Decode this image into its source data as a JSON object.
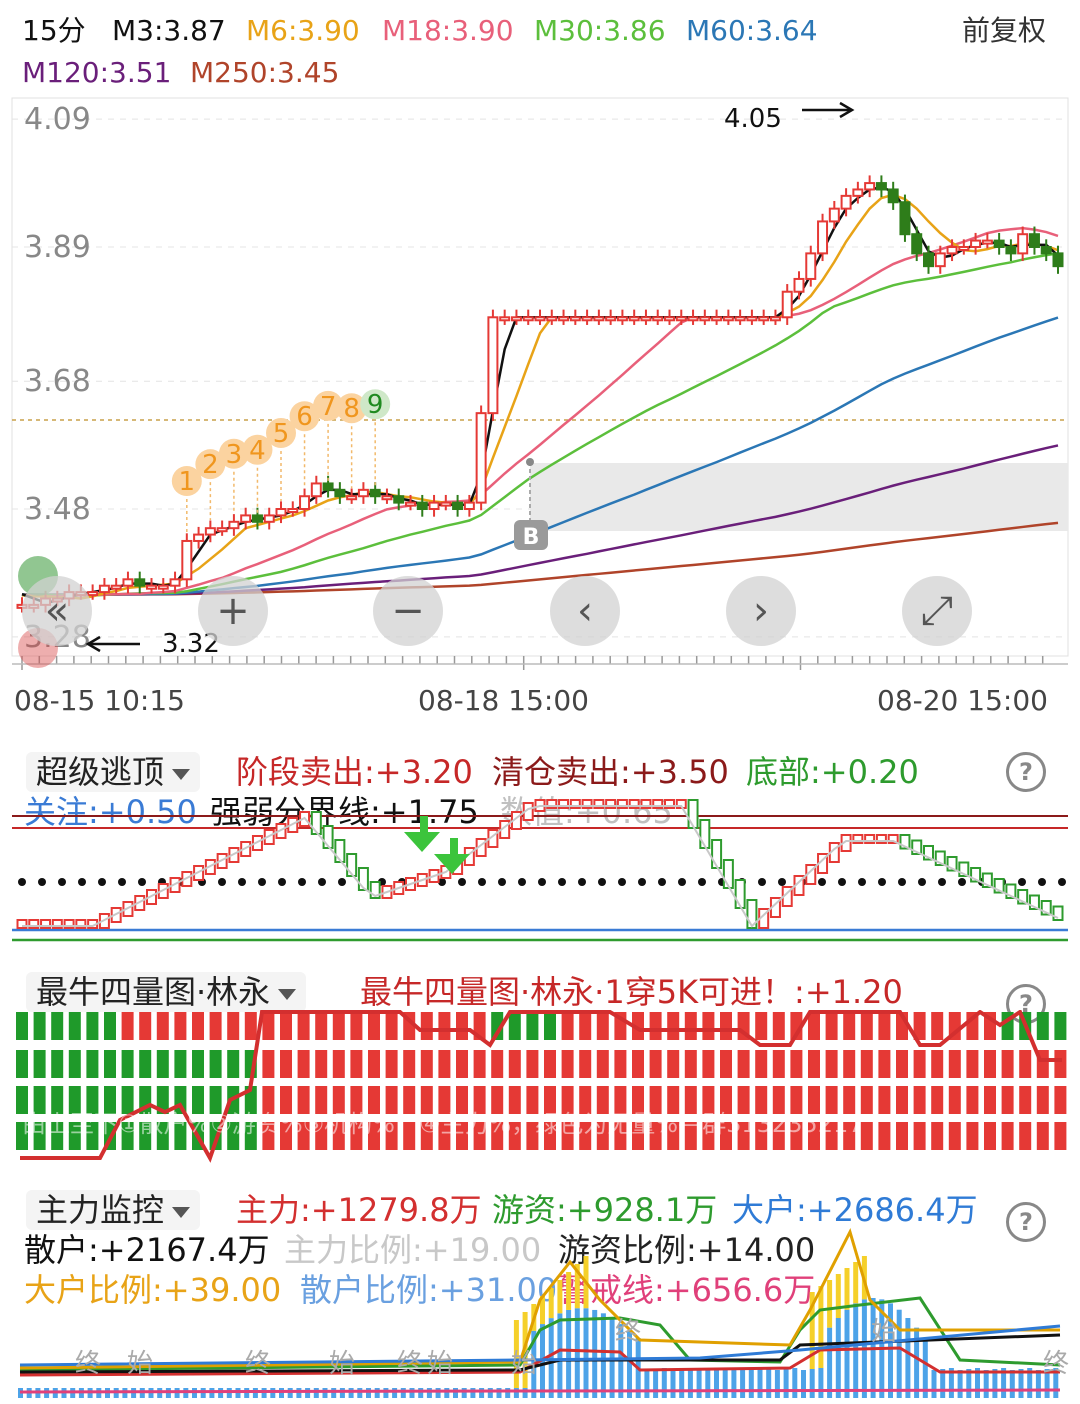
{
  "header": {
    "period": "15分",
    "adjust": "前复权",
    "ma": [
      {
        "label": "M3:3.87",
        "color": "#111111"
      },
      {
        "label": "M6:3.90",
        "color": "#e8a317"
      },
      {
        "label": "M18:3.90",
        "color": "#e8607a"
      },
      {
        "label": "M30:3.86",
        "color": "#5cbf3c"
      },
      {
        "label": "M60:3.64",
        "color": "#2b77b5"
      },
      {
        "label": "M120:3.51",
        "color": "#6a1f7a"
      },
      {
        "label": "M250:3.45",
        "color": "#b0442a"
      }
    ]
  },
  "chart_data": {
    "type": "candlestick",
    "yticks": [
      "4.09",
      "3.89",
      "3.68",
      "3.48",
      "3.28"
    ],
    "ylim": [
      3.25,
      4.12
    ],
    "xticks": [
      "08-15 10:15",
      "08-18 15:00",
      "08-20 15:00"
    ],
    "annotations": {
      "high": "4.05",
      "low": "3.32",
      "signal": "B"
    },
    "td_count": [
      "1",
      "2",
      "3",
      "4",
      "5",
      "6",
      "7",
      "8",
      "9"
    ],
    "closes": [
      3.33,
      3.33,
      3.34,
      3.34,
      3.35,
      3.35,
      3.35,
      3.36,
      3.36,
      3.37,
      3.36,
      3.36,
      3.36,
      3.37,
      3.43,
      3.44,
      3.45,
      3.45,
      3.46,
      3.47,
      3.46,
      3.47,
      3.48,
      3.48,
      3.5,
      3.52,
      3.51,
      3.5,
      3.5,
      3.51,
      3.5,
      3.5,
      3.49,
      3.49,
      3.48,
      3.49,
      3.49,
      3.48,
      3.49,
      3.63,
      3.78,
      3.78,
      3.78,
      3.78,
      3.78,
      3.78,
      3.78,
      3.78,
      3.78,
      3.78,
      3.78,
      3.78,
      3.78,
      3.78,
      3.78,
      3.78,
      3.78,
      3.78,
      3.78,
      3.78,
      3.78,
      3.78,
      3.78,
      3.78,
      3.78,
      3.82,
      3.84,
      3.88,
      3.93,
      3.95,
      3.97,
      3.98,
      3.99,
      3.98,
      3.96,
      3.91,
      3.88,
      3.86,
      3.88,
      3.89,
      3.89,
      3.9,
      3.9,
      3.89,
      3.88,
      3.91,
      3.89,
      3.88,
      3.86
    ]
  },
  "panel1": {
    "selector": "超级逃顶",
    "items": [
      {
        "label": "阶段卖出:+3.20",
        "color": "#c62828"
      },
      {
        "label": "清仓卖出:+3.50",
        "color": "#8b1a1a"
      },
      {
        "label": "底部:+0.20",
        "color": "#2e9b2e"
      },
      {
        "label": "关注:+0.50",
        "color": "#3a7bd5"
      },
      {
        "label": "强弱分界线:+1.75",
        "color": "#111111"
      },
      {
        "label": "数值:+0.65",
        "color": "#c0c0c0"
      }
    ],
    "help": "?"
  },
  "panel2": {
    "selector": "最牛四量图·林永",
    "title": "最牛四量图·林永·1穿5K可进！:+1.20",
    "watermark": "由上至下①散户%②游资%③机构%，④主力%，绿色为无量%—群313235217",
    "help": "?"
  },
  "panel3": {
    "selector": "主力监控",
    "items": [
      {
        "label": "主力:+1279.8万",
        "color": "#d32f2f"
      },
      {
        "label": "游资:+928.1万",
        "color": "#2e9b2e"
      },
      {
        "label": "大户:+2686.4万",
        "color": "#2f7bd6"
      },
      {
        "label": "散户:+2167.4万",
        "color": "#111111"
      },
      {
        "label": "主力比例:+19.00",
        "color": "#c8c8c8"
      },
      {
        "label": "游资比例:+14.00",
        "color": "#222222"
      },
      {
        "label": "大户比例:+39.00",
        "color": "#e8a317"
      },
      {
        "label": "散户比例:+31.00",
        "color": "#6aa0e0"
      },
      {
        "label": "警戒线:+656.6万",
        "color": "#e0407a"
      }
    ],
    "marks": [
      "终",
      "始",
      "终",
      "始",
      "终",
      "始",
      "终",
      "始",
      "终",
      "始"
    ],
    "help": "?"
  },
  "controls": {
    "prev": "«",
    "zoom_in": "+",
    "zoom_out": "−",
    "left": "‹",
    "right": "›",
    "fullscreen": "⤢"
  }
}
